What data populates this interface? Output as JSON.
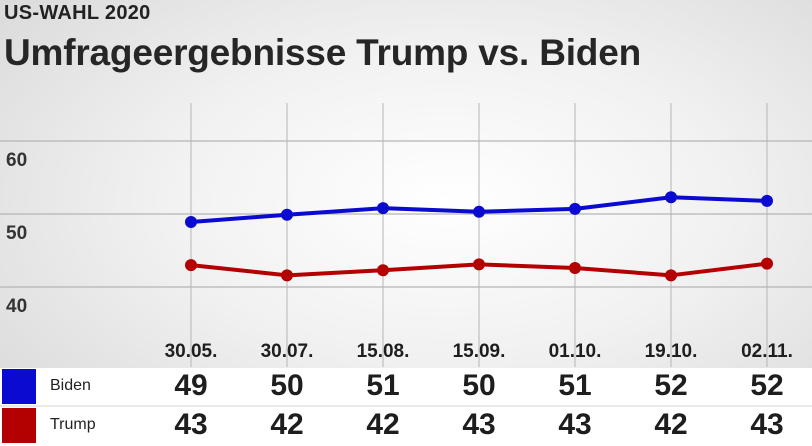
{
  "header": {
    "kicker": "US-WAHL 2020",
    "title": "Umfrageergebnisse Trump vs. Biden"
  },
  "colors": {
    "biden": "#0a0ad0",
    "trump": "#b30000",
    "grid": "#b5b5b5"
  },
  "chart_data": {
    "type": "line",
    "title": "Umfrageergebnisse Trump vs. Biden",
    "categories": [
      "30.05.",
      "30.07.",
      "15.08.",
      "15.09.",
      "01.10.",
      "19.10.",
      "02.11."
    ],
    "series": [
      {
        "name": "Biden",
        "values": [
          49,
          50,
          51,
          50,
          51,
          52,
          52
        ],
        "plotted": [
          48.9,
          49.9,
          50.8,
          50.3,
          50.7,
          52.3,
          51.8
        ]
      },
      {
        "name": "Trump",
        "values": [
          43,
          42,
          42,
          43,
          43,
          42,
          43
        ],
        "plotted": [
          43.0,
          41.6,
          42.3,
          43.1,
          42.6,
          41.6,
          43.2
        ]
      }
    ],
    "yticks": [
      40,
      50,
      60
    ],
    "ylim": [
      38,
      61
    ],
    "grid": true,
    "legend": "bottom table"
  }
}
